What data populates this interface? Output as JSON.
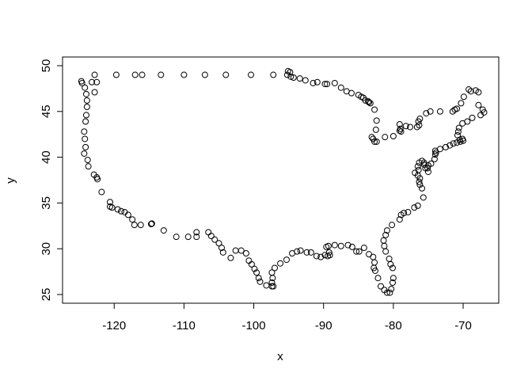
{
  "chart_data": {
    "type": "scatter",
    "xlabel": "x",
    "ylabel": "y",
    "color": "#000000",
    "x": [
      -124.7,
      -124.6,
      -124.2,
      -124.0,
      -123.9,
      -123.9,
      -124.0,
      -124.1,
      -124.3,
      -124.2,
      -124.1,
      -124.3,
      -123.8,
      -123.7,
      -122.9,
      -122.5,
      -122.4,
      -121.8,
      -120.6,
      -120.6,
      -120.3,
      -119.5,
      -119.0,
      -118.5,
      -118.0,
      -117.4,
      -117.1,
      -116.2,
      -114.7,
      -114.6,
      -112.9,
      -111.1,
      -109.4,
      -108.2,
      -108.2,
      -106.5,
      -106.1,
      -105.6,
      -105.0,
      -104.6,
      -104.4,
      -103.3,
      -102.6,
      -101.8,
      -101.1,
      -100.7,
      -100.3,
      -99.9,
      -99.6,
      -99.3,
      -99.1,
      -98.2,
      -97.4,
      -97.2,
      -97.4,
      -97.3,
      -97.4,
      -97.0,
      -96.2,
      -95.3,
      -94.5,
      -93.8,
      -93.3,
      -92.4,
      -91.8,
      -91.0,
      -90.4,
      -89.8,
      -89.4,
      -89.1,
      -89.2,
      -89.6,
      -89.3,
      -88.4,
      -87.5,
      -86.5,
      -85.9,
      -85.3,
      -84.9,
      -84.2,
      -83.5,
      -82.9,
      -82.7,
      -82.8,
      -82.6,
      -82.2,
      -81.8,
      -81.3,
      -80.9,
      -80.5,
      -80.3,
      -80.1,
      -80.0,
      -80.1,
      -80.4,
      -80.6,
      -81.1,
      -81.3,
      -81.4,
      -81.1,
      -80.9,
      -80.2,
      -79.1,
      -78.9,
      -78.5,
      -77.9,
      -77.0,
      -76.5,
      -75.7,
      -75.9,
      -76.2,
      -76.3,
      -76.2,
      -76.5,
      -76.9,
      -76.4,
      -76.5,
      -76.3,
      -75.9,
      -75.6,
      -75.1,
      -75.0,
      -75.4,
      -75.6,
      -75.0,
      -74.6,
      -74.1,
      -74.0,
      -73.9,
      -74.0,
      -73.3,
      -72.5,
      -71.9,
      -71.4,
      -70.9,
      -70.4,
      -70.0,
      -70.1,
      -70.5,
      -70.8,
      -70.7,
      -70.6,
      -70.1,
      -69.4,
      -68.7,
      -67.5,
      -67.0,
      -67.2,
      -67.8,
      -67.8,
      -68.2,
      -68.9,
      -69.2,
      -69.9,
      -70.3,
      -70.9,
      -71.2,
      -71.5,
      -73.3,
      -74.7,
      -75.3,
      -76.2,
      -76.4,
      -76.3,
      -76.6,
      -77.6,
      -78.2,
      -79.1,
      -79.0,
      -79.1,
      -78.9,
      -80.0,
      -81.2,
      -82.4,
      -82.7,
      -82.9,
      -83.1,
      -82.5,
      -82.4,
      -82.7,
      -83.3,
      -83.5,
      -83.6,
      -84.0,
      -84.3,
      -84.6,
      -85.0,
      -86.0,
      -86.7,
      -87.5,
      -88.4,
      -89.5,
      -89.8,
      -90.9,
      -91.5,
      -92.6,
      -93.4,
      -94.3,
      -94.7,
      -94.8,
      -95.1,
      -95.2,
      -97.2,
      -100.4,
      -104.0,
      -107.0,
      -110.0,
      -113.3,
      -116.0,
      -117.0,
      -119.7,
      -122.8,
      -123.2,
      -122.5,
      -122.8
    ],
    "values": [
      48.3,
      48.1,
      47.6,
      46.9,
      46.2,
      45.5,
      44.6,
      43.9,
      42.8,
      42.0,
      41.1,
      40.4,
      39.7,
      39.0,
      38.1,
      37.8,
      37.6,
      36.2,
      35.1,
      34.6,
      34.5,
      34.3,
      34.1,
      34.0,
      33.7,
      33.2,
      32.6,
      32.6,
      32.7,
      32.75,
      32.0,
      31.3,
      31.3,
      31.3,
      31.8,
      31.8,
      31.4,
      31.0,
      30.6,
      30.1,
      29.6,
      29.0,
      29.8,
      29.8,
      29.5,
      28.7,
      28.3,
      27.8,
      27.4,
      26.8,
      26.4,
      26.0,
      25.9,
      25.9,
      26.3,
      26.8,
      27.4,
      27.9,
      28.4,
      28.8,
      29.5,
      29.7,
      29.8,
      29.6,
      29.6,
      29.2,
      29.1,
      29.3,
      29.2,
      29.3,
      29.6,
      30.2,
      30.3,
      30.4,
      30.3,
      30.4,
      30.2,
      29.7,
      29.7,
      30.1,
      29.4,
      29.1,
      28.5,
      27.9,
      27.6,
      26.8,
      25.9,
      25.5,
      25.2,
      25.2,
      25.6,
      26.3,
      26.8,
      27.9,
      28.3,
      28.9,
      29.7,
      30.3,
      30.9,
      31.5,
      32.0,
      32.6,
      33.2,
      33.7,
      33.9,
      34.0,
      34.5,
      34.7,
      35.6,
      36.6,
      37.0,
      37.3,
      37.7,
      38.0,
      38.3,
      38.6,
      39.0,
      39.4,
      39.6,
      39.4,
      38.8,
      38.4,
      38.8,
      39.2,
      39.1,
      39.3,
      39.8,
      40.3,
      40.5,
      40.7,
      40.9,
      41.1,
      41.3,
      41.5,
      41.6,
      41.7,
      41.8,
      42.0,
      41.9,
      42.4,
      42.8,
      43.2,
      43.7,
      43.9,
      44.3,
      44.6,
      44.9,
      45.2,
      45.7,
      47.1,
      47.3,
      47.2,
      47.4,
      46.6,
      45.9,
      45.3,
      45.2,
      45.0,
      45.0,
      45.0,
      44.8,
      44.2,
      43.9,
      43.5,
      43.3,
      43.3,
      43.4,
      43.6,
      43.1,
      42.9,
      42.8,
      42.3,
      42.2,
      41.7,
      41.7,
      42.0,
      42.2,
      43.0,
      44.0,
      45.2,
      45.9,
      46.0,
      46.1,
      46.2,
      46.5,
      46.6,
      46.8,
      47.0,
      47.2,
      47.6,
      48.1,
      48.0,
      48.0,
      48.2,
      48.1,
      48.4,
      48.6,
      48.7,
      48.8,
      49.3,
      49.4,
      49.0,
      49.0,
      49.0,
      49.0,
      49.0,
      49.0,
      49.0,
      49.0,
      49.0,
      49.0,
      49.0,
      48.2,
      48.2,
      47.1
    ],
    "xlim": [
      -127.4,
      -64.9
    ],
    "ylim": [
      24.05,
      50.95
    ],
    "xticks": [
      -120,
      -110,
      -100,
      -90,
      -80,
      -70
    ],
    "yticks": [
      25,
      30,
      35,
      40,
      45,
      50
    ]
  }
}
